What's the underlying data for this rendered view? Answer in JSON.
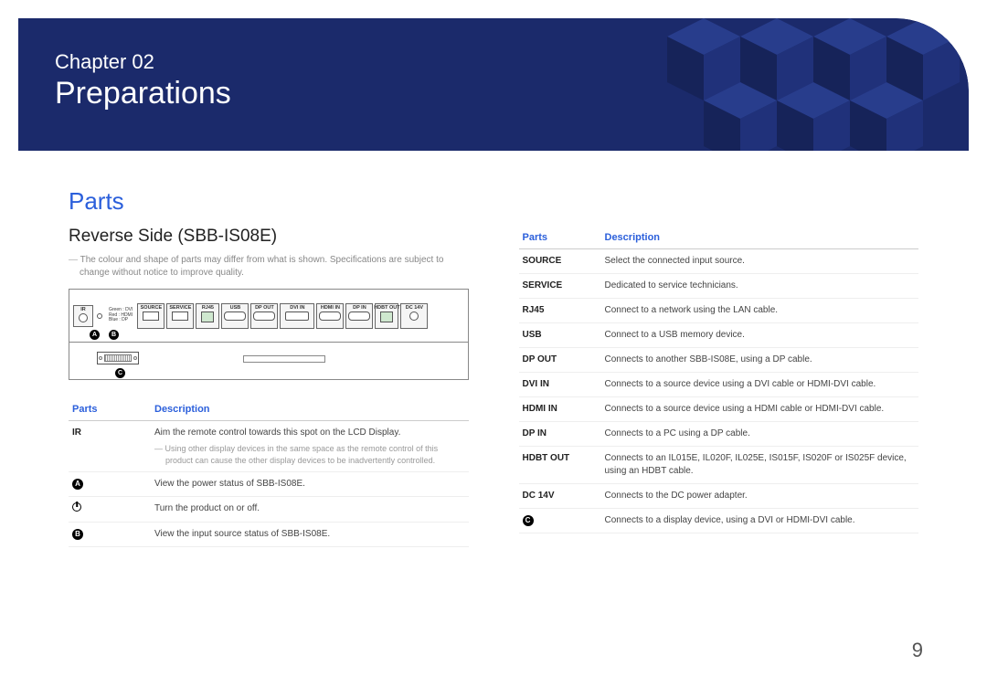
{
  "hero": {
    "chapter_label": "Chapter 02",
    "title": "Preparations"
  },
  "section_heading": "Parts",
  "subheading": "Reverse Side (SBB-IS08E)",
  "disclaimer": "The colour and shape of parts may differ from what is shown. Specifications are subject to change without notice to improve quality.",
  "diagram": {
    "led_lines": [
      "Green : DVI",
      "Red : HDMI",
      "Blue : DP"
    ],
    "ports_top": [
      {
        "label": "IR"
      },
      {
        "label_only": true
      },
      {
        "label": "SOURCE"
      },
      {
        "label": "SERVICE"
      },
      {
        "label": "RJ45",
        "glyph": "rj45"
      },
      {
        "label": "USB",
        "glyph": "oval"
      },
      {
        "label": "DP OUT",
        "glyph": "oval"
      },
      {
        "label": "DVI IN",
        "glyph": "wide"
      },
      {
        "label": "HDMI IN",
        "glyph": "oval"
      },
      {
        "label": "DP IN",
        "glyph": "oval"
      },
      {
        "label": "HDBT OUT",
        "glyph": "rj45"
      },
      {
        "label": "DC 14V",
        "glyph": "round"
      }
    ],
    "callout_A": "A",
    "callout_B": "B",
    "callout_C": "C"
  },
  "left_table": {
    "headers": [
      "Parts",
      "Description"
    ],
    "rows": [
      {
        "part": "IR",
        "desc": "Aim the remote control towards this spot on the LCD Display.",
        "note": "Using other display devices in the same space as the remote control of this product can cause the other display devices to be inadvertently controlled."
      },
      {
        "part_icon": "circle-A",
        "part_label": "A",
        "desc": "View the power status of SBB-IS08E."
      },
      {
        "part_icon": "power",
        "desc": "Turn the product on or off."
      },
      {
        "part_icon": "circle-B",
        "part_label": "B",
        "desc": "View the input source status of SBB-IS08E."
      }
    ]
  },
  "right_table": {
    "headers": [
      "Parts",
      "Description"
    ],
    "rows": [
      {
        "part": "SOURCE",
        "desc": "Select the connected input source."
      },
      {
        "part": "SERVICE",
        "desc": "Dedicated to service technicians."
      },
      {
        "part": "RJ45",
        "desc": "Connect to a network using the LAN cable."
      },
      {
        "part": "USB",
        "desc": "Connect to a USB memory device."
      },
      {
        "part": "DP OUT",
        "desc": "Connects to another SBB-IS08E, using a DP cable."
      },
      {
        "part": "DVI IN",
        "desc": "Connects to a source device using a DVI cable or HDMI-DVI cable."
      },
      {
        "part": "HDMI IN",
        "desc": "Connects to a source device using a HDMI cable or HDMI-DVI cable."
      },
      {
        "part": "DP IN",
        "desc": "Connects to a PC using a DP cable."
      },
      {
        "part": "HDBT OUT",
        "desc": "Connects to an IL015E, IL020F, IL025E, IS015F, IS020F or IS025F device, using an HDBT cable."
      },
      {
        "part": "DC 14V",
        "desc": "Connects to the DC power adapter."
      },
      {
        "part_icon": "circle-C",
        "part_label": "C",
        "desc": "Connects to a display device, using a DVI or HDMI-DVI cable."
      }
    ]
  },
  "page_number": "9",
  "colors": {
    "accent": "#2b5fdb",
    "hero_bg": "#1b2a6b"
  }
}
